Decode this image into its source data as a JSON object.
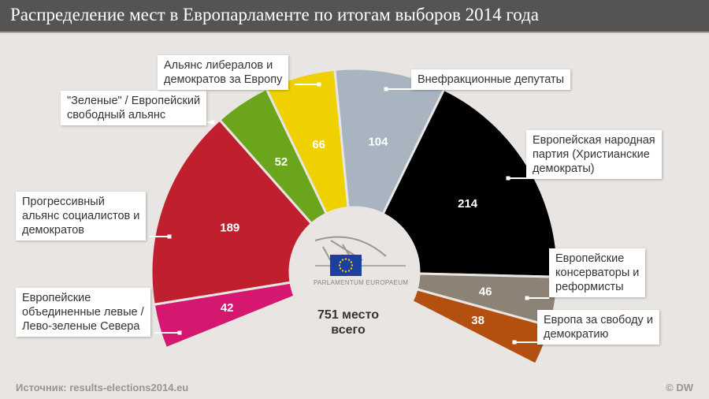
{
  "header": {
    "title": "Распределение мест в Европарламенте по итогам выборов 2014 года"
  },
  "chart_data": {
    "type": "pie",
    "subtype": "parliament half-donut",
    "title": "Распределение мест в Европарламенте по итогам выборов 2014 года",
    "total_label": [
      "751 место",
      "всего"
    ],
    "categories": [
      "Европейские объединенные левые / Лево-зеленые Севера",
      "Прогрессивный альянс социалистов и демократов",
      "\"Зеленые\" / Европейский свободный альянс",
      "Альянс либералов и демократов за Европу",
      "Внефракционные депутаты",
      "Европейская народная партия (Христианские демократы)",
      "Европейские консерваторы и реформисты",
      "Европа за свободу и демократию"
    ],
    "values": [
      42,
      189,
      52,
      66,
      104,
      214,
      46,
      38
    ],
    "colors": [
      "#d6176f",
      "#c0202e",
      "#6aa51b",
      "#efd000",
      "#a8b5c1",
      "#000000",
      "#8c8276",
      "#b4500f"
    ]
  },
  "labels": [
    [
      "Европейские",
      "объединенные левые /",
      "Лево-зеленые Севера"
    ],
    [
      "Прогрессивный",
      "альянс социалистов и",
      "демократов"
    ],
    [
      "\"Зеленые\" / Европейский",
      "свободный альянс"
    ],
    [
      "Альянс либералов и",
      "демократов за Европу"
    ],
    [
      "Внефракционные депутаты"
    ],
    [
      "Европейская народная",
      "партия (Христианские",
      "демократы)"
    ],
    [
      "Европейские",
      "консерваторы и",
      "реформисты"
    ],
    [
      "Европа за свободу и",
      "демократию"
    ]
  ],
  "logo": {
    "text": "PARLAMENTUM EUROPAEUM"
  },
  "footer": {
    "source": "Источник:  results-elections2014.eu",
    "copyright": "© DW"
  }
}
